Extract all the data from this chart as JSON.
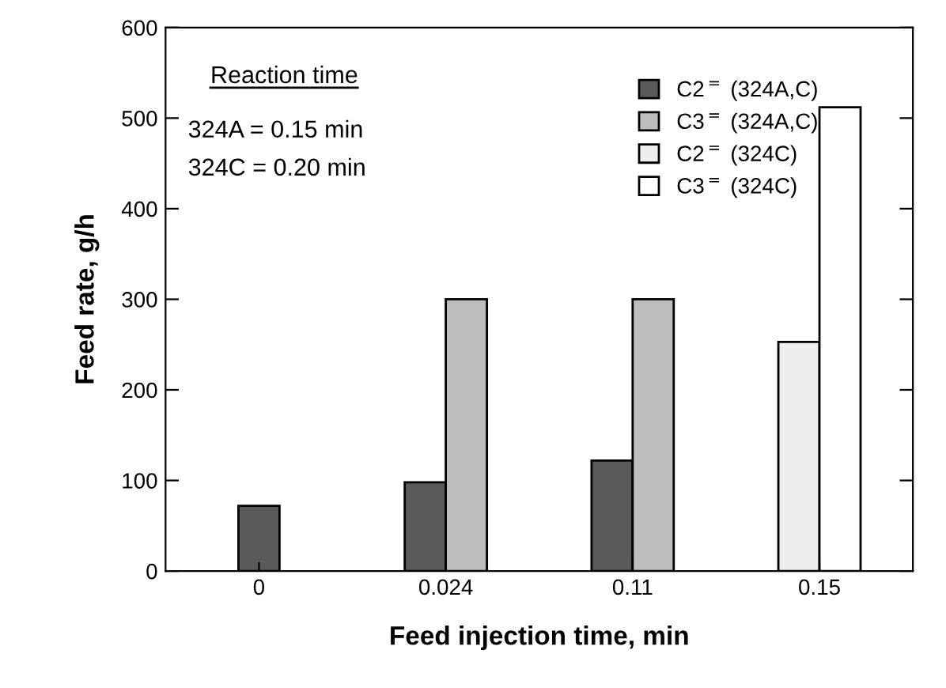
{
  "chart_data": {
    "type": "bar",
    "xlabel": "Feed injection time, min",
    "ylabel": "Feed rate, g/h",
    "categories": [
      "0",
      "0.024",
      "0.11",
      "0.15"
    ],
    "series": [
      {
        "name": "C2$^{=}$ (324A,C)",
        "color": "#5a5a5a",
        "values": [
          72,
          98,
          122,
          null
        ]
      },
      {
        "name": "C3$^{=}$ (324A,C)",
        "color": "#bdbdbd",
        "values": [
          null,
          300,
          300,
          null
        ]
      },
      {
        "name": "C2$^{=}$ (324C)",
        "color": "#eeeeee",
        "values": [
          null,
          null,
          null,
          253
        ]
      },
      {
        "name": "C3$^{=}$ (324C)",
        "color": "#ffffff",
        "values": [
          null,
          null,
          null,
          512
        ]
      }
    ],
    "ylim": [
      0,
      600
    ],
    "yticks": [
      0,
      100,
      200,
      300,
      400,
      500,
      600
    ],
    "legend": "top right",
    "grid": false,
    "annotations": [
      "Reaction time",
      "324A = 0.15 min",
      "324C = 0.20 min"
    ]
  }
}
